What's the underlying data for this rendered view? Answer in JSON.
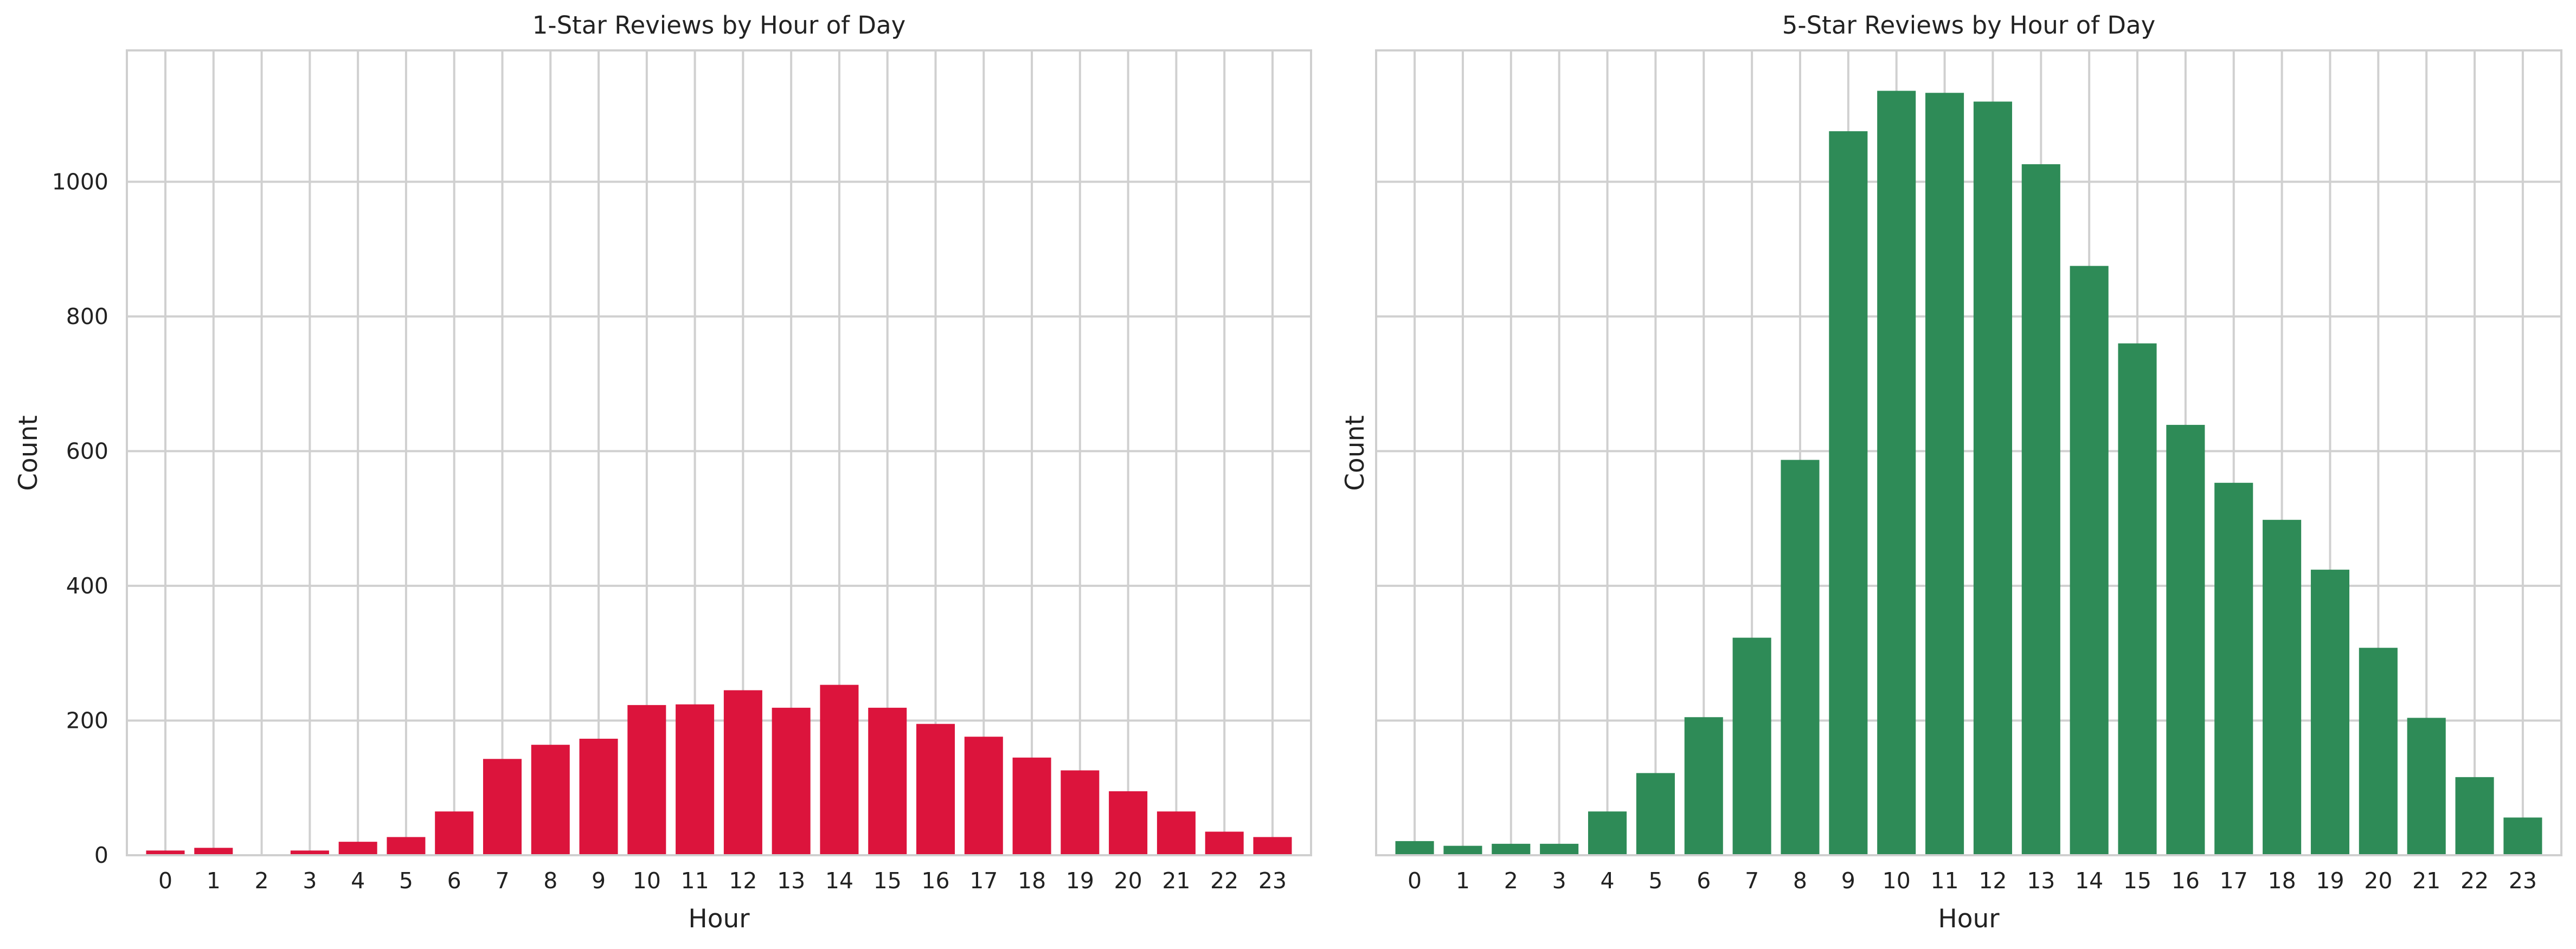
{
  "chart_data": [
    {
      "type": "bar",
      "title": "1-Star Reviews by Hour of Day",
      "xlabel": "Hour",
      "ylabel": "Count",
      "categories": [
        "0",
        "1",
        "2",
        "3",
        "4",
        "5",
        "6",
        "7",
        "8",
        "9",
        "10",
        "11",
        "12",
        "13",
        "14",
        "15",
        "16",
        "17",
        "18",
        "19",
        "20",
        "21",
        "22",
        "23"
      ],
      "values": [
        7,
        11,
        1,
        7,
        20,
        27,
        65,
        143,
        164,
        173,
        223,
        224,
        245,
        219,
        253,
        219,
        195,
        176,
        145,
        126,
        95,
        65,
        35,
        27
      ],
      "ylim": [
        0,
        1195
      ],
      "yticks": [
        0,
        200,
        400,
        600,
        800,
        1000
      ],
      "color": "#dc143c",
      "grid": true
    },
    {
      "type": "bar",
      "title": "5-Star Reviews by Hour of Day",
      "xlabel": "Hour",
      "ylabel": "Count",
      "categories": [
        "0",
        "1",
        "2",
        "3",
        "4",
        "5",
        "6",
        "7",
        "8",
        "9",
        "10",
        "11",
        "12",
        "13",
        "14",
        "15",
        "16",
        "17",
        "18",
        "19",
        "20",
        "21",
        "22",
        "23"
      ],
      "values": [
        21,
        14,
        17,
        17,
        65,
        122,
        205,
        323,
        587,
        1075,
        1135,
        1132,
        1119,
        1026,
        875,
        760,
        639,
        553,
        498,
        424,
        308,
        204,
        116,
        56
      ],
      "ylim": [
        0,
        1195
      ],
      "yticks": [
        0,
        200,
        400,
        600,
        800,
        1000
      ],
      "color": "#2e8b57",
      "grid": true
    }
  ]
}
